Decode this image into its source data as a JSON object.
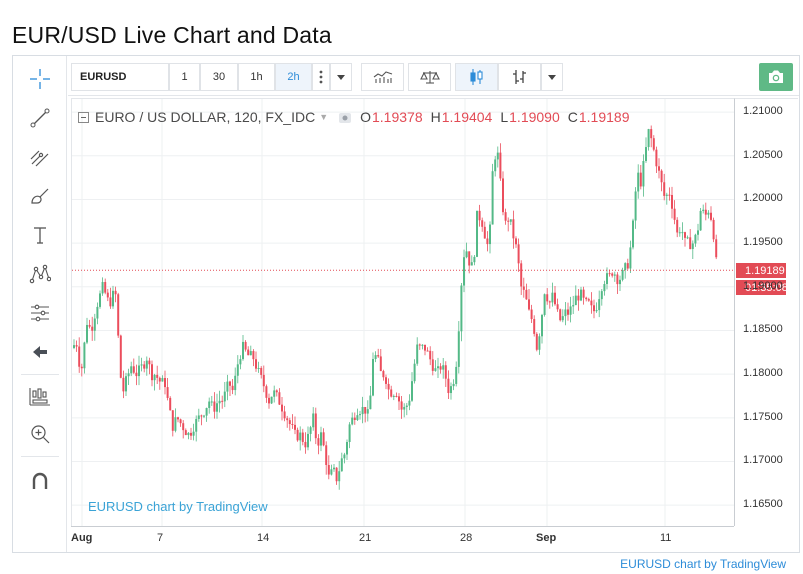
{
  "page": {
    "title": "EUR/USD Live Chart and Data"
  },
  "toolbar": {
    "symbol": "EURUSD",
    "intervals": [
      "1",
      "30",
      "1h",
      "2h"
    ],
    "active_interval": "2h",
    "icons": [
      "more-vert-icon",
      "dropdown-caret-icon",
      "indicators-icon",
      "compare-scale-icon",
      "candles-icon",
      "bar-style-icon",
      "dropdown-caret-icon",
      "camera-icon"
    ]
  },
  "left_tools": [
    "crosshair-icon",
    "trend-line-icon",
    "pitchfork-icon",
    "brush-icon",
    "text-icon",
    "pattern-icon",
    "measure-icon",
    "back-arrow-icon",
    "chart-layout-icon",
    "zoom-icon",
    "magnet-icon"
  ],
  "legend": {
    "symbol_title": "EURO / US DOLLAR, 120, FX_IDC",
    "open_label": "O",
    "open": "1.19378",
    "high_label": "H",
    "high": "1.19404",
    "low_label": "L",
    "low": "1.19090",
    "close_label": "C",
    "close": "1.19189"
  },
  "price_tag": {
    "price": "1.19189",
    "countdown": "01:35:08"
  },
  "watermark": "EURUSD chart by TradingView",
  "footer_link": "EURUSD chart by TradingView",
  "colors": {
    "up": "#53b987",
    "down": "#eb4d5c",
    "accent": "#2d8cd8",
    "snapshot": "#5fb986"
  },
  "chart_data": {
    "type": "candlestick",
    "symbol": "EURUSD",
    "interval": "120",
    "y_ticks": [
      "1.21000",
      "1.20500",
      "1.20000",
      "1.19500",
      "1.19000",
      "1.18500",
      "1.18000",
      "1.17500",
      "1.17000",
      "1.16500"
    ],
    "x_ticks": [
      "Aug",
      "7",
      "14",
      "21",
      "28",
      "Sep",
      "11"
    ],
    "ylim": [
      1.1625,
      1.2115
    ],
    "grid": true,
    "last_price": 1.19189,
    "close_path": [
      [
        0,
        1.183
      ],
      [
        3,
        1.184
      ],
      [
        8,
        1.18
      ],
      [
        14,
        1.186
      ],
      [
        18,
        1.185
      ],
      [
        24,
        1.188
      ],
      [
        30,
        1.19
      ],
      [
        36,
        1.188
      ],
      [
        40,
        1.189
      ],
      [
        44,
        1.189
      ],
      [
        46,
        1.181
      ],
      [
        50,
        1.178
      ],
      [
        58,
        1.181
      ],
      [
        64,
        1.18
      ],
      [
        70,
        1.181
      ],
      [
        74,
        1.182
      ],
      [
        78,
        1.18
      ],
      [
        82,
        1.18
      ],
      [
        88,
        1.179
      ],
      [
        92,
        1.179
      ],
      [
        96,
        1.176
      ],
      [
        100,
        1.174
      ],
      [
        104,
        1.175
      ],
      [
        110,
        1.174
      ],
      [
        116,
        1.173
      ],
      [
        120,
        1.174
      ],
      [
        126,
        1.175
      ],
      [
        132,
        1.176
      ],
      [
        136,
        1.177
      ],
      [
        140,
        1.176
      ],
      [
        146,
        1.177
      ],
      [
        150,
        1.177
      ],
      [
        156,
        1.179
      ],
      [
        160,
        1.178
      ],
      [
        166,
        1.182
      ],
      [
        170,
        1.183
      ],
      [
        176,
        1.182
      ],
      [
        180,
        1.182
      ],
      [
        186,
        1.18
      ],
      [
        190,
        1.179
      ],
      [
        196,
        1.177
      ],
      [
        200,
        1.178
      ],
      [
        206,
        1.177
      ],
      [
        210,
        1.176
      ],
      [
        214,
        1.175
      ],
      [
        218,
        1.174
      ],
      [
        222,
        1.173
      ],
      [
        228,
        1.173
      ],
      [
        232,
        1.172
      ],
      [
        236,
        1.173
      ],
      [
        240,
        1.175
      ],
      [
        244,
        1.172
      ],
      [
        248,
        1.173
      ],
      [
        252,
        1.171
      ],
      [
        256,
        1.168
      ],
      [
        260,
        1.169
      ],
      [
        264,
        1.168
      ],
      [
        268,
        1.17
      ],
      [
        272,
        1.171
      ],
      [
        276,
        1.174
      ],
      [
        280,
        1.175
      ],
      [
        284,
        1.176
      ],
      [
        288,
        1.176
      ],
      [
        292,
        1.176
      ],
      [
        296,
        1.175
      ],
      [
        300,
        1.182
      ],
      [
        304,
        1.182
      ],
      [
        308,
        1.18
      ],
      [
        312,
        1.18
      ],
      [
        316,
        1.178
      ],
      [
        320,
        1.178
      ],
      [
        324,
        1.178
      ],
      [
        328,
        1.176
      ],
      [
        332,
        1.176
      ],
      [
        336,
        1.177
      ],
      [
        340,
        1.18
      ],
      [
        344,
        1.183
      ],
      [
        348,
        1.183
      ],
      [
        352,
        1.183
      ],
      [
        356,
        1.182
      ],
      [
        360,
        1.181
      ],
      [
        364,
        1.18
      ],
      [
        368,
        1.181
      ],
      [
        372,
        1.18
      ],
      [
        376,
        1.178
      ],
      [
        380,
        1.179
      ],
      [
        384,
        1.182
      ],
      [
        388,
        1.19
      ],
      [
        392,
        1.195
      ],
      [
        396,
        1.193
      ],
      [
        400,
        1.192
      ],
      [
        404,
        1.198
      ],
      [
        408,
        1.198
      ],
      [
        412,
        1.196
      ],
      [
        416,
        1.194
      ],
      [
        420,
        1.204
      ],
      [
        424,
        1.206
      ],
      [
        428,
        1.201
      ],
      [
        432,
        1.197
      ],
      [
        436,
        1.198
      ],
      [
        440,
        1.196
      ],
      [
        444,
        1.194
      ],
      [
        448,
        1.19
      ],
      [
        452,
        1.189
      ],
      [
        456,
        1.187
      ],
      [
        460,
        1.186
      ],
      [
        464,
        1.183
      ],
      [
        468,
        1.186
      ],
      [
        472,
        1.19
      ],
      [
        476,
        1.188
      ],
      [
        480,
        1.189
      ],
      [
        484,
        1.187
      ],
      [
        488,
        1.186
      ],
      [
        492,
        1.187
      ],
      [
        496,
        1.187
      ],
      [
        500,
        1.188
      ],
      [
        504,
        1.189
      ],
      [
        508,
        1.189
      ],
      [
        512,
        1.188
      ],
      [
        516,
        1.188
      ],
      [
        520,
        1.187
      ],
      [
        524,
        1.188
      ],
      [
        528,
        1.19
      ],
      [
        532,
        1.191
      ],
      [
        536,
        1.191
      ],
      [
        540,
        1.192
      ],
      [
        544,
        1.191
      ],
      [
        548,
        1.191
      ],
      [
        552,
        1.192
      ],
      [
        556,
        1.193
      ],
      [
        560,
        1.197
      ],
      [
        564,
        1.203
      ],
      [
        568,
        1.202
      ],
      [
        572,
        1.205
      ],
      [
        576,
        1.208
      ],
      [
        580,
        1.206
      ],
      [
        584,
        1.204
      ],
      [
        588,
        1.202
      ],
      [
        592,
        1.2
      ],
      [
        596,
        1.201
      ],
      [
        600,
        1.199
      ],
      [
        604,
        1.196
      ],
      [
        608,
        1.197
      ],
      [
        612,
        1.195
      ],
      [
        616,
        1.195
      ],
      [
        620,
        1.195
      ],
      [
        624,
        1.196
      ],
      [
        628,
        1.199
      ],
      [
        632,
        1.198
      ],
      [
        636,
        1.199
      ],
      [
        640,
        1.197
      ],
      [
        642,
        1.194
      ],
      [
        644,
        1.1919
      ]
    ]
  }
}
